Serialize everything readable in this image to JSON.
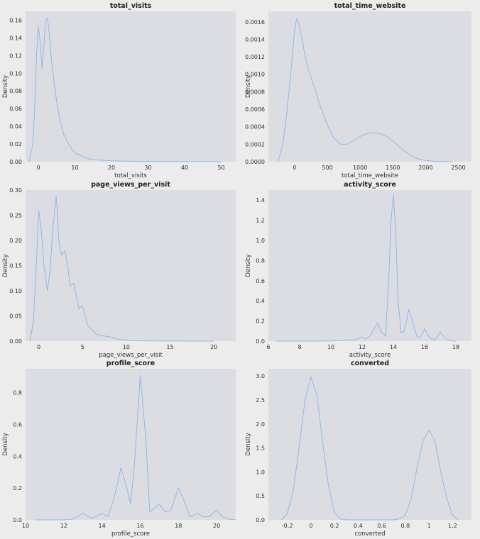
{
  "chart_data": [
    {
      "type": "line",
      "title": "total_visits",
      "xlabel": "total_visits",
      "ylabel": "Density",
      "xlim": [
        -3.5,
        54
      ],
      "ylim": [
        0,
        0.17
      ],
      "xticks": [
        0,
        10,
        20,
        30,
        40,
        50
      ],
      "yticks": [
        0.0,
        0.02,
        0.04,
        0.06,
        0.08,
        0.1,
        0.12,
        0.14,
        0.16
      ],
      "ytick_decimals": 2,
      "grid": false,
      "series": [
        {
          "x": [
            -2.5,
            -1.5,
            -1,
            -0.5,
            0,
            0.5,
            1,
            1.5,
            2,
            2.5,
            3,
            3.5,
            4,
            5,
            6,
            7,
            8,
            9,
            10,
            12,
            14,
            16,
            20,
            25,
            30,
            40,
            50
          ],
          "y": [
            0.0,
            0.02,
            0.06,
            0.12,
            0.153,
            0.135,
            0.105,
            0.13,
            0.16,
            0.162,
            0.145,
            0.12,
            0.1,
            0.068,
            0.045,
            0.03,
            0.022,
            0.015,
            0.01,
            0.006,
            0.003,
            0.002,
            0.001,
            0.0005,
            0.0002,
            0.0001,
            0.0
          ]
        }
      ]
    },
    {
      "type": "line",
      "title": "total_time_website",
      "xlabel": "total_time_website",
      "ylabel": "Density",
      "xlim": [
        -400,
        2700
      ],
      "ylim": [
        0,
        0.00172
      ],
      "xticks": [
        0,
        500,
        1000,
        1500,
        2000,
        2500
      ],
      "yticks": [
        0.0,
        0.0002,
        0.0004,
        0.0006,
        0.0008,
        0.001,
        0.0012,
        0.0014,
        0.0016
      ],
      "ytick_decimals": 4,
      "grid": false,
      "series": [
        {
          "x": [
            -250,
            -180,
            -120,
            -60,
            0,
            30,
            60,
            100,
            150,
            200,
            300,
            400,
            500,
            600,
            700,
            800,
            900,
            1000,
            1100,
            1200,
            1300,
            1400,
            1500,
            1600,
            1700,
            1800,
            1900,
            2000,
            2100,
            2200,
            2300,
            2400
          ],
          "y": [
            0.0,
            0.0002,
            0.00055,
            0.001,
            0.00152,
            0.00163,
            0.0016,
            0.00145,
            0.00125,
            0.00108,
            0.00085,
            0.00062,
            0.00042,
            0.00027,
            0.0002,
            0.0002,
            0.00024,
            0.00029,
            0.00032,
            0.00033,
            0.00032,
            0.00029,
            0.00024,
            0.00017,
            0.00011,
            6e-05,
            3e-05,
            1.5e-05,
            7e-06,
            3e-06,
            1e-06,
            0.0
          ]
        }
      ]
    },
    {
      "type": "line",
      "title": "page_views_per_visit",
      "xlabel": "page_views_per_visit",
      "ylabel": "Density",
      "xlim": [
        -1.5,
        22.5
      ],
      "ylim": [
        0,
        0.3
      ],
      "xticks": [
        0,
        5,
        10,
        15,
        20
      ],
      "yticks": [
        0.0,
        0.05,
        0.1,
        0.15,
        0.2,
        0.25,
        0.3
      ],
      "ytick_decimals": 2,
      "grid": false,
      "series": [
        {
          "x": [
            -1,
            -0.6,
            -0.3,
            0,
            0.3,
            0.6,
            1,
            1.3,
            1.6,
            2,
            2.3,
            2.6,
            3,
            3.3,
            3.6,
            4,
            4.3,
            4.6,
            5,
            5.3,
            5.6,
            6,
            6.5,
            7,
            7.5,
            8,
            8.5,
            9,
            10,
            11,
            12,
            14,
            16,
            18,
            20
          ],
          "y": [
            0.0,
            0.04,
            0.14,
            0.26,
            0.22,
            0.15,
            0.1,
            0.14,
            0.22,
            0.288,
            0.2,
            0.17,
            0.18,
            0.15,
            0.11,
            0.115,
            0.09,
            0.065,
            0.07,
            0.05,
            0.03,
            0.025,
            0.015,
            0.012,
            0.01,
            0.009,
            0.007,
            0.004,
            0.002,
            0.001,
            0.0005,
            0.0002,
            0.0001,
            0.0,
            0.0
          ]
        }
      ]
    },
    {
      "type": "line",
      "title": "activity_score",
      "xlabel": "activity_score",
      "ylabel": "Density",
      "xlim": [
        6,
        19
      ],
      "ylim": [
        0,
        1.5
      ],
      "xticks": [
        6,
        8,
        10,
        12,
        14,
        16,
        18
      ],
      "yticks": [
        0.0,
        0.2,
        0.4,
        0.6,
        0.8,
        1.0,
        1.2,
        1.4
      ],
      "ytick_decimals": 1,
      "grid": false,
      "series": [
        {
          "x": [
            6.5,
            7,
            8,
            9,
            10,
            10.5,
            11,
            11.5,
            12,
            12.2,
            12.5,
            12.8,
            13,
            13.2,
            13.5,
            13.7,
            13.85,
            14,
            14.15,
            14.3,
            14.5,
            14.7,
            15,
            15.3,
            15.5,
            15.7,
            16,
            16.3,
            16.5,
            16.7,
            17,
            17.3,
            17.5,
            18
          ],
          "y": [
            0.0,
            0.0,
            0.0,
            0.0,
            0.002,
            0.005,
            0.012,
            0.01,
            0.04,
            0.02,
            0.05,
            0.13,
            0.18,
            0.1,
            0.05,
            0.6,
            1.2,
            1.45,
            1.1,
            0.4,
            0.08,
            0.1,
            0.32,
            0.15,
            0.05,
            0.03,
            0.12,
            0.04,
            0.02,
            0.02,
            0.09,
            0.03,
            0.01,
            0.0
          ]
        }
      ]
    },
    {
      "type": "line",
      "title": "profile_score",
      "xlabel": "profile_score",
      "ylabel": "Density",
      "xlim": [
        10,
        21
      ],
      "ylim": [
        0,
        0.95
      ],
      "xticks": [
        10,
        12,
        14,
        16,
        18,
        20
      ],
      "yticks": [
        0.0,
        0.2,
        0.4,
        0.6,
        0.8
      ],
      "ytick_decimals": 1,
      "grid": false,
      "series": [
        {
          "x": [
            10.5,
            11,
            12,
            12.5,
            13,
            13.5,
            14,
            14.3,
            14.6,
            15,
            15.3,
            15.5,
            15.7,
            16,
            16.3,
            16.5,
            16.8,
            17,
            17.3,
            17.6,
            18,
            18.3,
            18.6,
            19,
            19.3,
            19.6,
            20,
            20.3,
            20.6,
            21
          ],
          "y": [
            0.0,
            0.0,
            0.0,
            0.005,
            0.04,
            0.01,
            0.04,
            0.02,
            0.12,
            0.33,
            0.2,
            0.1,
            0.35,
            0.91,
            0.5,
            0.05,
            0.08,
            0.1,
            0.05,
            0.06,
            0.2,
            0.12,
            0.02,
            0.04,
            0.02,
            0.02,
            0.06,
            0.02,
            0.005,
            0.0
          ]
        }
      ]
    },
    {
      "type": "line",
      "title": "converted",
      "xlabel": "converted",
      "ylabel": "Density",
      "xlim": [
        -0.36,
        1.36
      ],
      "ylim": [
        0,
        3.15
      ],
      "xticks": [
        -0.2,
        0.0,
        0.2,
        0.4,
        0.6,
        0.8,
        1.0,
        1.2
      ],
      "yticks": [
        0.0,
        0.5,
        1.0,
        1.5,
        2.0,
        2.5,
        3.0
      ],
      "ytick_decimals": 1,
      "grid": false,
      "series": [
        {
          "x": [
            -0.25,
            -0.2,
            -0.15,
            -0.1,
            -0.05,
            0.0,
            0.05,
            0.1,
            0.15,
            0.2,
            0.25,
            0.3,
            0.4,
            0.5,
            0.6,
            0.7,
            0.75,
            0.8,
            0.85,
            0.9,
            0.95,
            1.0,
            1.05,
            1.1,
            1.15,
            1.2,
            1.25
          ],
          "y": [
            0.0,
            0.13,
            0.6,
            1.5,
            2.5,
            2.98,
            2.6,
            1.6,
            0.7,
            0.15,
            0.02,
            0.0,
            0.0,
            0.0,
            0.0,
            0.0,
            0.02,
            0.1,
            0.45,
            1.1,
            1.65,
            1.87,
            1.65,
            1.0,
            0.45,
            0.1,
            0.0
          ]
        }
      ]
    }
  ]
}
